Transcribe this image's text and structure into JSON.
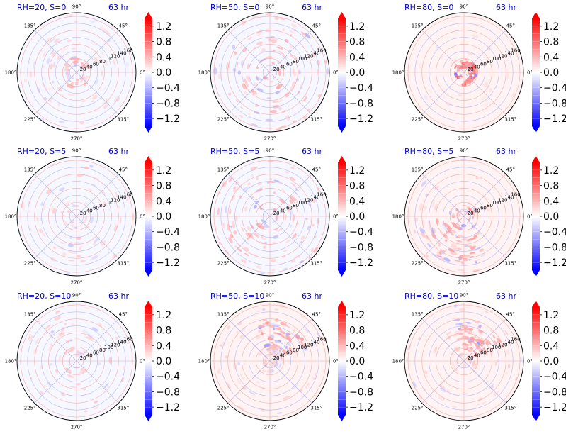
{
  "chart_data": {
    "type": "heatmap",
    "projection": "polar",
    "time_label": "63 hr",
    "angle_ticks": [
      "0°",
      "45°",
      "90°",
      "135°",
      "180°",
      "225°",
      "270°",
      "315°"
    ],
    "radial_ticks": [
      20,
      40,
      60,
      80,
      100,
      120,
      140,
      160
    ],
    "colorbar": {
      "colormap": "bwr",
      "ticks": [
        1.2,
        0.8,
        0.4,
        0.0,
        -0.4,
        -0.8,
        -1.2
      ],
      "tick_labels": [
        "1.2",
        "0.8",
        "0.4",
        "0.0",
        "−0.4",
        "−0.8",
        "−1.2"
      ],
      "range": [
        -1.4,
        1.4
      ],
      "extend": "both"
    },
    "panels": [
      {
        "title": "RH=20, S=0",
        "pattern": "weak-ring"
      },
      {
        "title": "RH=50, S=0",
        "pattern": "scattered"
      },
      {
        "title": "RH=80, S=0",
        "pattern": "strong-core"
      },
      {
        "title": "RH=20, S=5",
        "pattern": "weak-scattered"
      },
      {
        "title": "RH=50, S=5",
        "pattern": "scattered"
      },
      {
        "title": "RH=80, S=5",
        "pattern": "core-arc"
      },
      {
        "title": "RH=20, S=10",
        "pattern": "weak-scattered"
      },
      {
        "title": "RH=50, S=10",
        "pattern": "arc-ne"
      },
      {
        "title": "RH=80, S=10",
        "pattern": "arc-ne"
      }
    ]
  }
}
